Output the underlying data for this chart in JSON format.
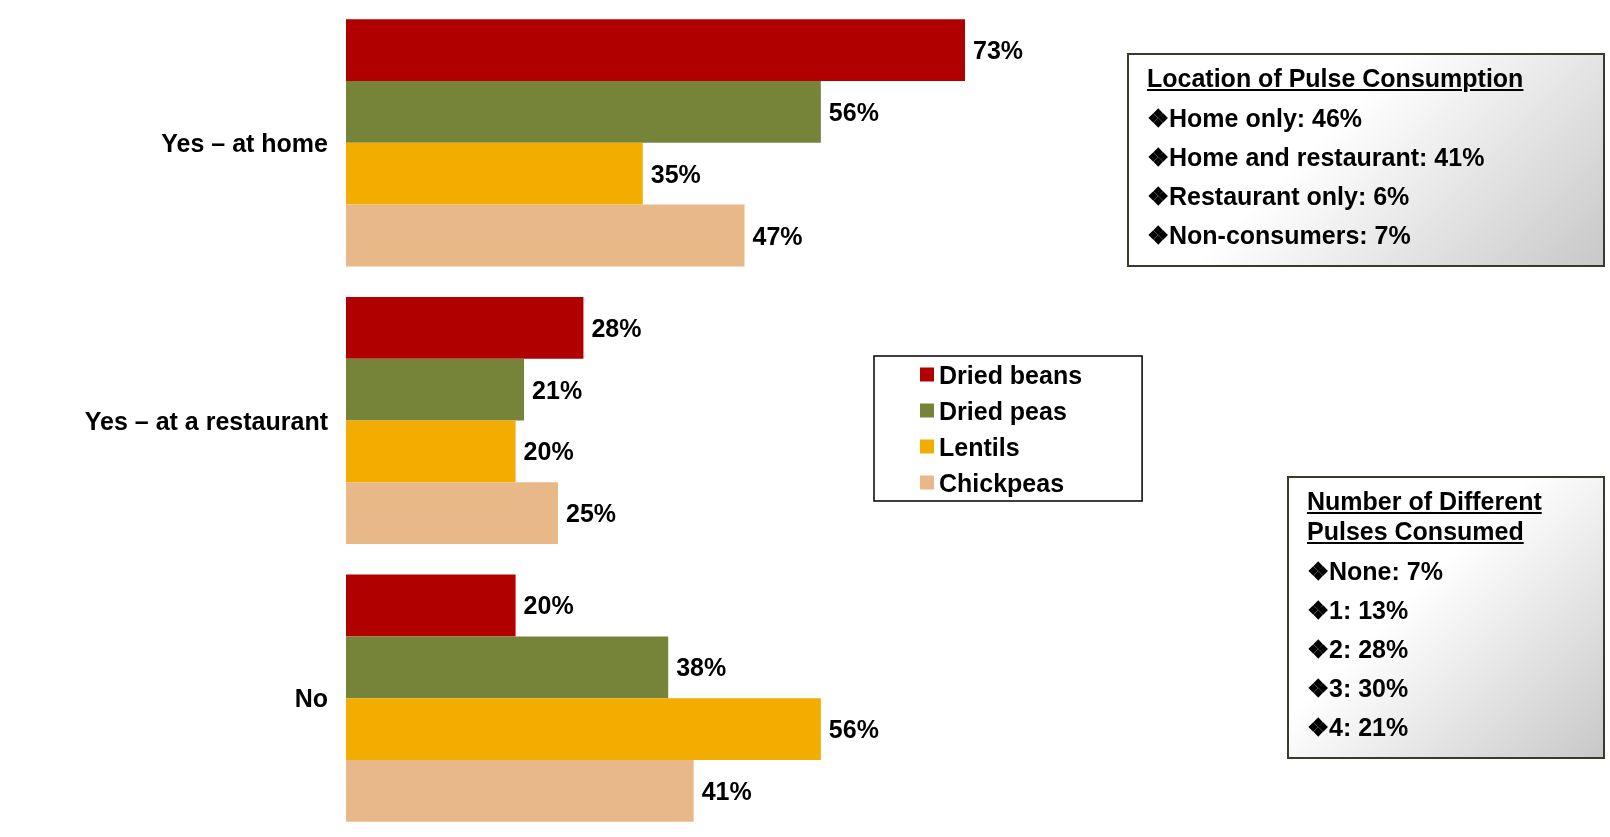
{
  "chart_data": [
    {
      "type": "bar",
      "orientation": "horizontal",
      "categories": [
        "Yes – at home",
        "Yes – at a restaurant",
        "No"
      ],
      "series": [
        {
          "name": "Dried beans",
          "color": "#b00000",
          "values": [
            73,
            28,
            20
          ],
          "value_labels": [
            "73%",
            "28%",
            "20%"
          ]
        },
        {
          "name": "Dried peas",
          "color": "#76843a",
          "values": [
            56,
            21,
            38
          ],
          "value_labels": [
            "56%",
            "21%",
            "38%"
          ]
        },
        {
          "name": "Lentils",
          "color": "#f2ad00",
          "values": [
            35,
            20,
            56
          ],
          "value_labels": [
            "35%",
            "20%",
            "56%"
          ]
        },
        {
          "name": "Chickpeas",
          "color": "#e8b888",
          "values": [
            47,
            25,
            41
          ],
          "value_labels": [
            "47%",
            "25%",
            "41%"
          ]
        }
      ],
      "legend": "right"
    },
    {
      "type": "other",
      "title": "Location of Pulse Consumption",
      "annotations": [
        "❖Home only: 46%",
        "❖Home and restaurant: 41%",
        "❖Restaurant only: 6%",
        "❖Non-consumers: 7%"
      ]
    },
    {
      "type": "other",
      "title": "Number of Different Pulses Consumed",
      "annotations": [
        "❖None: 7%",
        "❖1: 13%",
        "❖2: 28%",
        "❖3: 30%",
        "❖4: 21%"
      ]
    }
  ]
}
